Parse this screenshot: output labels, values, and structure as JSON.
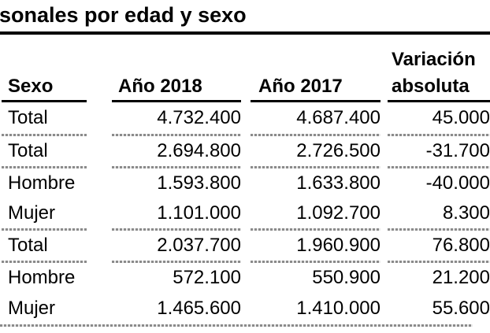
{
  "title": {
    "text": "sonales por edad y sexo"
  },
  "table": {
    "columns": [
      {
        "id": "sexo",
        "label": "Sexo"
      },
      {
        "id": "ano2018",
        "label": "Año 2018"
      },
      {
        "id": "ano2017",
        "label": "Año 2017"
      },
      {
        "id": "variacion_absoluta",
        "label_line1": "Variación",
        "label_line2": "absoluta"
      }
    ],
    "rows": [
      {
        "sexo": "Total",
        "ano2018": "4.732.400",
        "ano2017": "4.687.400",
        "variacion": "45.000"
      },
      {
        "sexo": "Total",
        "ano2018": "2.694.800",
        "ano2017": "2.726.500",
        "variacion": "-31.700"
      },
      {
        "sexo": "Hombre",
        "ano2018": "1.593.800",
        "ano2017": "1.633.800",
        "variacion": "-40.000"
      },
      {
        "sexo": "Mujer",
        "ano2018": "1.101.000",
        "ano2017": "1.092.700",
        "variacion": "8.300"
      },
      {
        "sexo": "Total",
        "ano2018": "2.037.700",
        "ano2017": "1.960.900",
        "variacion": "76.800"
      },
      {
        "sexo": "Hombre",
        "ano2018": "572.100",
        "ano2017": "550.900",
        "variacion": "21.200"
      },
      {
        "sexo": "Mujer",
        "ano2018": "1.465.600",
        "ano2017": "1.410.000",
        "variacion": "55.600"
      }
    ]
  },
  "colors": {
    "text": "#000000",
    "header_rule": "#000000",
    "separator": "#8b8b8b"
  }
}
